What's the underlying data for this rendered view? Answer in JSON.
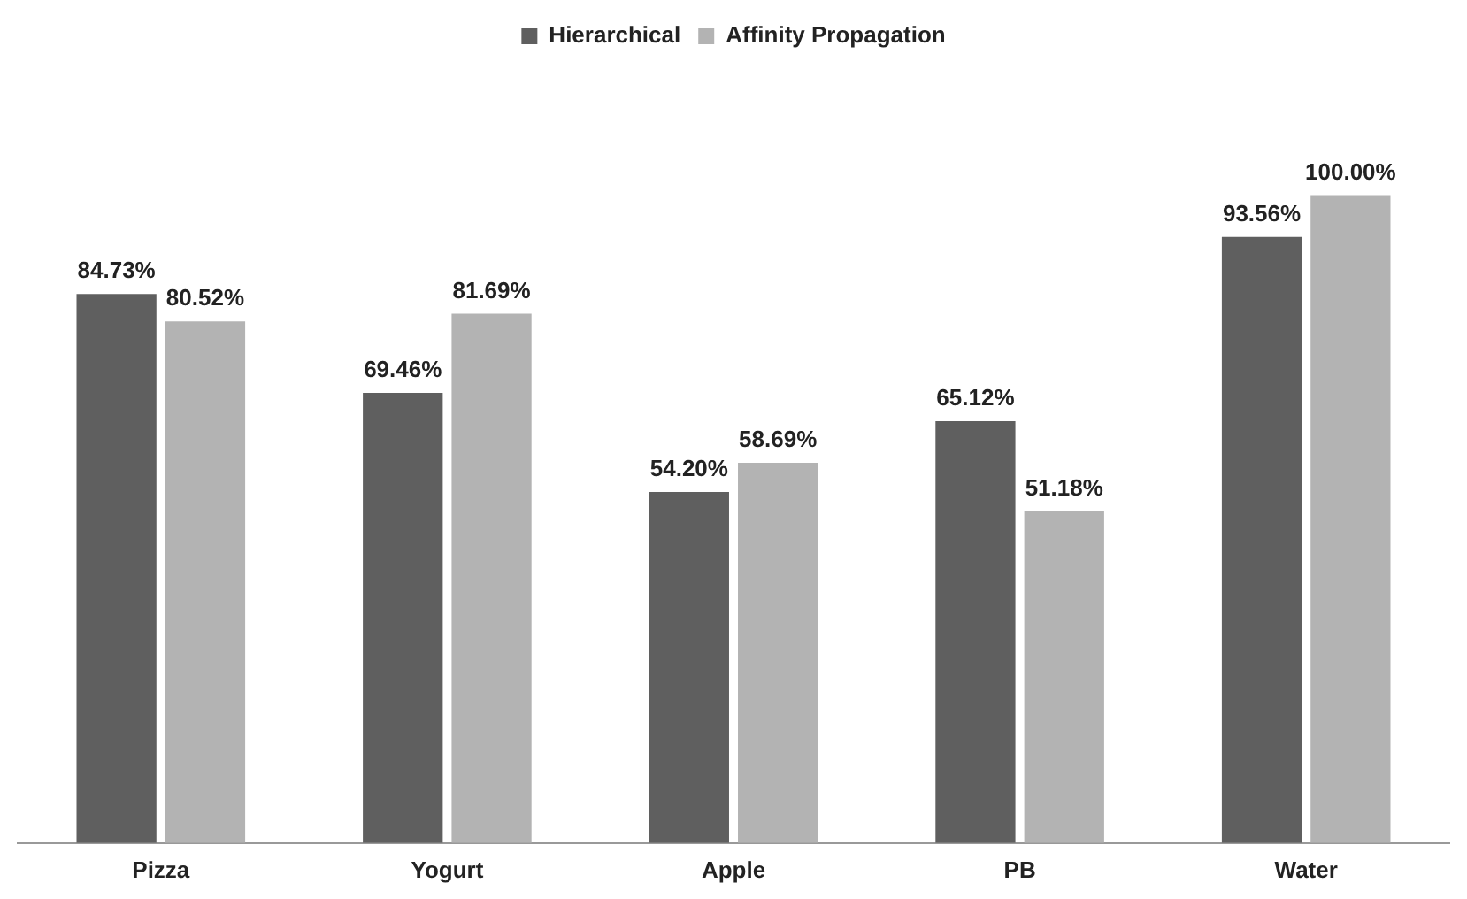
{
  "chart_data": {
    "type": "bar",
    "categories": [
      "Pizza",
      "Yogurt",
      "Apple",
      "PB",
      "Water"
    ],
    "series": [
      {
        "name": "Hierarchical",
        "color": "#5f5f5f",
        "values": [
          84.73,
          69.46,
          54.2,
          65.12,
          93.56
        ],
        "value_labels": [
          "84.73%",
          "69.46%",
          "54.20%",
          "65.12%",
          "93.56%"
        ]
      },
      {
        "name": "Affinity Propagation",
        "color": "#b3b3b3",
        "values": [
          80.52,
          81.69,
          58.69,
          51.18,
          100.0
        ],
        "value_labels": [
          "80.52%",
          "81.69%",
          "58.69%",
          "51.18%",
          "100.00%"
        ]
      }
    ],
    "legend": "top",
    "grid": false,
    "tick_labels": "x"
  }
}
